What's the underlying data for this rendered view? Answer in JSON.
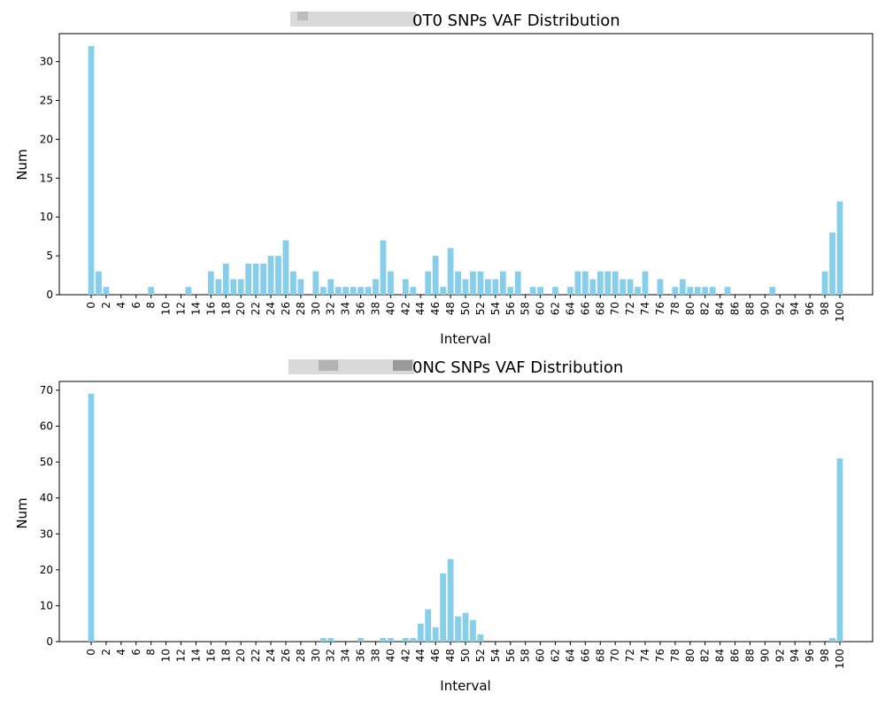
{
  "colors": {
    "bar": "#87CEEB",
    "axis": "#000000",
    "redaction": "#cfcfcf"
  },
  "chart_data": [
    {
      "type": "bar",
      "title": "0T0 SNPs VAF Distribution",
      "title_redacted_prefix": true,
      "xlabel": "Interval",
      "ylabel": "Num",
      "ylim": [
        0,
        33.6
      ],
      "yticks": [
        0,
        5,
        10,
        15,
        20,
        25,
        30
      ],
      "xtick_labels": [
        "0",
        "2",
        "4",
        "6",
        "8",
        "10",
        "12",
        "14",
        "16",
        "18",
        "20",
        "22",
        "24",
        "26",
        "28",
        "30",
        "32",
        "34",
        "36",
        "38",
        "40",
        "42",
        "44",
        "46",
        "48",
        "50",
        "52",
        "54",
        "56",
        "58",
        "60",
        "62",
        "64",
        "66",
        "68",
        "70",
        "72",
        "74",
        "76",
        "78",
        "80",
        "82",
        "84",
        "86",
        "88",
        "90",
        "92",
        "94",
        "96",
        "98",
        "100"
      ],
      "x": [
        0,
        1,
        2,
        3,
        4,
        5,
        6,
        7,
        8,
        9,
        10,
        11,
        12,
        13,
        14,
        15,
        16,
        17,
        18,
        19,
        20,
        21,
        22,
        23,
        24,
        25,
        26,
        27,
        28,
        29,
        30,
        31,
        32,
        33,
        34,
        35,
        36,
        37,
        38,
        39,
        40,
        41,
        42,
        43,
        44,
        45,
        46,
        47,
        48,
        49,
        50,
        51,
        52,
        53,
        54,
        55,
        56,
        57,
        58,
        59,
        60,
        61,
        62,
        63,
        64,
        65,
        66,
        67,
        68,
        69,
        70,
        71,
        72,
        73,
        74,
        75,
        76,
        77,
        78,
        79,
        80,
        81,
        82,
        83,
        84,
        85,
        86,
        87,
        88,
        89,
        90,
        91,
        92,
        93,
        94,
        95,
        96,
        97,
        98,
        99,
        100
      ],
      "values": [
        32,
        3,
        1,
        0,
        0,
        0,
        0,
        0,
        1,
        0,
        0,
        0,
        0,
        1,
        0,
        0,
        3,
        2,
        4,
        2,
        2,
        4,
        4,
        4,
        5,
        5,
        7,
        3,
        2,
        0,
        3,
        1,
        2,
        1,
        1,
        1,
        1,
        1,
        2,
        7,
        3,
        0,
        2,
        1,
        0,
        3,
        5,
        1,
        6,
        3,
        2,
        3,
        3,
        2,
        2,
        3,
        1,
        3,
        0,
        1,
        1,
        0,
        1,
        0,
        1,
        3,
        3,
        2,
        3,
        3,
        3,
        2,
        2,
        1,
        3,
        0,
        2,
        0,
        1,
        2,
        1,
        1,
        1,
        1,
        0,
        1,
        0,
        0,
        0,
        0,
        0,
        1,
        0,
        0,
        0,
        0,
        0,
        0,
        3,
        8,
        12
      ]
    },
    {
      "type": "bar",
      "title": "0NC SNPs VAF Distribution",
      "title_redacted_prefix": true,
      "xlabel": "Interval",
      "ylabel": "Num",
      "ylim": [
        0,
        72.45
      ],
      "yticks": [
        0,
        10,
        20,
        30,
        40,
        50,
        60,
        70
      ],
      "xtick_labels": [
        "0",
        "2",
        "4",
        "6",
        "8",
        "10",
        "12",
        "14",
        "16",
        "18",
        "20",
        "22",
        "24",
        "26",
        "28",
        "30",
        "32",
        "34",
        "36",
        "38",
        "40",
        "42",
        "44",
        "46",
        "48",
        "50",
        "52",
        "54",
        "56",
        "58",
        "60",
        "62",
        "64",
        "66",
        "68",
        "70",
        "72",
        "74",
        "76",
        "78",
        "80",
        "82",
        "84",
        "86",
        "88",
        "90",
        "92",
        "94",
        "96",
        "98",
        "100"
      ],
      "x": [
        0,
        1,
        2,
        3,
        4,
        5,
        6,
        7,
        8,
        9,
        10,
        11,
        12,
        13,
        14,
        15,
        16,
        17,
        18,
        19,
        20,
        21,
        22,
        23,
        24,
        25,
        26,
        27,
        28,
        29,
        30,
        31,
        32,
        33,
        34,
        35,
        36,
        37,
        38,
        39,
        40,
        41,
        42,
        43,
        44,
        45,
        46,
        47,
        48,
        49,
        50,
        51,
        52,
        53,
        54,
        55,
        56,
        57,
        58,
        59,
        60,
        61,
        62,
        63,
        64,
        65,
        66,
        67,
        68,
        69,
        70,
        71,
        72,
        73,
        74,
        75,
        76,
        77,
        78,
        79,
        80,
        81,
        82,
        83,
        84,
        85,
        86,
        87,
        88,
        89,
        90,
        91,
        92,
        93,
        94,
        95,
        96,
        97,
        98,
        99,
        100
      ],
      "values": [
        69,
        0,
        0,
        0,
        0,
        0,
        0,
        0,
        0,
        0,
        0,
        0,
        0,
        0,
        0,
        0,
        0,
        0,
        0,
        0,
        0,
        0,
        0,
        0,
        0,
        0,
        0,
        0,
        0,
        0,
        0,
        1,
        1,
        0,
        0,
        0,
        1,
        0,
        0,
        1,
        1,
        0,
        1,
        1,
        5,
        9,
        4,
        19,
        23,
        7,
        8,
        6,
        2,
        0,
        0,
        0,
        0,
        0,
        0,
        0,
        0,
        0,
        0,
        0,
        0,
        0,
        0,
        0,
        0,
        0,
        0,
        0,
        0,
        0,
        0,
        0,
        0,
        0,
        0,
        0,
        0,
        0,
        0,
        0,
        0,
        0,
        0,
        0,
        0,
        0,
        0,
        0,
        0,
        0,
        0,
        0,
        0,
        0,
        0,
        1,
        51
      ]
    }
  ]
}
